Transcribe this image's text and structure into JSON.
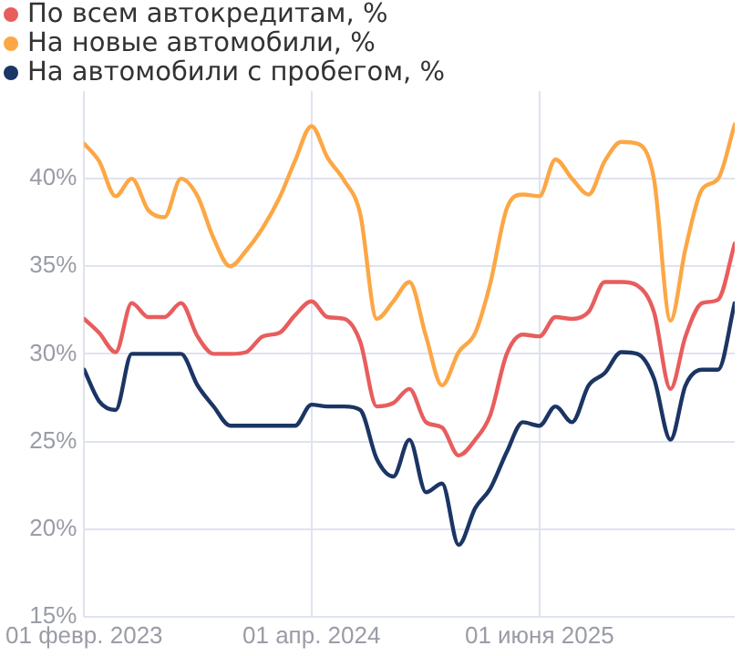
{
  "chart_data": {
    "type": "line",
    "x": [
      "2023-02",
      "2023-03",
      "2023-04",
      "2023-05",
      "2023-06",
      "2023-07",
      "2023-08",
      "2023-09",
      "2023-10",
      "2023-11",
      "2023-12",
      "2024-01",
      "2024-02",
      "2024-03",
      "2024-04",
      "2024-05",
      "2024-06",
      "2024-07",
      "2024-08",
      "2024-09",
      "2024-10",
      "2024-11",
      "2024-12",
      "2025-01",
      "2025-02",
      "2025-03",
      "2025-04",
      "2025-05",
      "2025-06",
      "2025-07",
      "2025-08",
      "2025-09",
      "2025-10",
      "2025-11",
      "2025-12",
      "2026-01",
      "2026-02",
      "2026-03",
      "2026-04",
      "2026-05",
      "2026-06"
    ],
    "series": [
      {
        "name": "По всем автокредитам, %",
        "color": "#e85d5d",
        "values": [
          32.0,
          31.2,
          30.1,
          32.9,
          32.1,
          32.1,
          32.9,
          31.0,
          30.0,
          30.0,
          30.1,
          31.0,
          31.2,
          32.2,
          33.0,
          32.1,
          32.0,
          30.7,
          27.0,
          27.2,
          28.0,
          26.1,
          25.8,
          24.2,
          25.1,
          26.5,
          30.0,
          31.1,
          31.0,
          32.1,
          32.0,
          32.4,
          34.1,
          34.1,
          33.9,
          32.4,
          28.0,
          31.0,
          32.9,
          33.1,
          36.3
        ]
      },
      {
        "name": "На новые автомобили, %",
        "color": "#fca745",
        "values": [
          42.0,
          41.0,
          39.0,
          40.0,
          38.2,
          37.8,
          40.0,
          39.0,
          36.6,
          35.0,
          35.9,
          37.2,
          38.9,
          41.0,
          43.0,
          41.2,
          39.9,
          38.0,
          32.0,
          33.0,
          34.1,
          31.0,
          28.2,
          30.1,
          31.2,
          34.0,
          38.3,
          39.1,
          39.0,
          41.1,
          40.0,
          39.1,
          41.0,
          42.1,
          42.0,
          40.0,
          31.9,
          36.0,
          39.4,
          40.0,
          43.1
        ]
      },
      {
        "name": "На автомобили с пробегом, %",
        "color": "#1b3564",
        "values": [
          29.1,
          27.3,
          26.8,
          30.0,
          30.0,
          30.0,
          30.0,
          28.2,
          27.0,
          25.9,
          25.9,
          25.9,
          25.9,
          25.9,
          27.1,
          27.0,
          27.0,
          26.8,
          24.0,
          23.0,
          25.1,
          22.1,
          22.6,
          19.1,
          21.2,
          22.3,
          24.4,
          26.1,
          25.9,
          27.0,
          26.1,
          28.2,
          28.9,
          30.1,
          30.0,
          28.6,
          25.1,
          28.2,
          29.1,
          29.1,
          32.9
        ]
      }
    ],
    "xlim": [
      "2023-02",
      "2026-06"
    ],
    "xticks": [
      {
        "value": "2023-02-01",
        "label": "01 февр. 2023"
      },
      {
        "value": "2024-04-01",
        "label": "01 апр. 2024"
      },
      {
        "value": "2025-06-01",
        "label": "01 июня 2025"
      }
    ],
    "ylim": [
      15,
      45
    ],
    "yticks": [
      {
        "value": 15,
        "label": "15%"
      },
      {
        "value": 20,
        "label": "20%"
      },
      {
        "value": 25,
        "label": "25%"
      },
      {
        "value": 30,
        "label": "30%"
      },
      {
        "value": 35,
        "label": "35%"
      },
      {
        "value": 40,
        "label": "40%"
      }
    ],
    "grid": true,
    "legend": "top left",
    "marker": "none",
    "line_style": "solid"
  }
}
